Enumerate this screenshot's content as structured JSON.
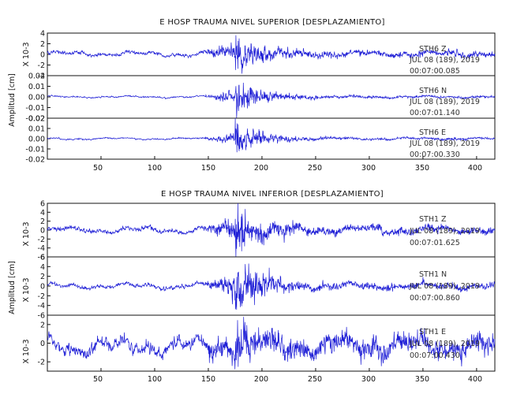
{
  "colors": {
    "trace": "#1f1fd6",
    "axis": "#111111",
    "background": "#ffffff"
  },
  "chart_data": [
    {
      "type": "line",
      "title": "E HOSP TRAUMA NIVEL SUPERIOR [DESPLAZAMIENTO]",
      "ylabel": "Amplitud [cm]",
      "xlim": [
        0,
        417
      ],
      "xticks": [
        50,
        100,
        150,
        200,
        250,
        300,
        350,
        400
      ],
      "panels": [
        {
          "id": "sup-z",
          "scale_label": "X 10-3",
          "ylim": [
            -4,
            4
          ],
          "yticks": [
            "4",
            "2",
            "0",
            "-2",
            "-4"
          ],
          "yvals": [
            4,
            2,
            0,
            -2,
            -4
          ],
          "station": "STH6   Z",
          "date": "JUL 08 (189), 2019",
          "time": "00:07:00.085",
          "waveform": {
            "onset_x": 175,
            "peak_abs": 4.2,
            "background_abs": 0.5,
            "bias": 0.1
          }
        },
        {
          "id": "sup-n",
          "ylim": [
            -0.02,
            0.02
          ],
          "yticks": [
            "0.02",
            "0.01",
            "0.00",
            "-0.01",
            "-0.02"
          ],
          "yvals": [
            0.02,
            0.01,
            0,
            -0.01,
            -0.02
          ],
          "station": "STH6   N",
          "date": "JUL 08 (189), 2019",
          "time": "00:07:01.140",
          "waveform": {
            "onset_x": 175,
            "peak_abs": 0.018,
            "background_abs": 0.001,
            "bias": 0
          }
        },
        {
          "id": "sup-e",
          "ylim": [
            -0.02,
            0.02
          ],
          "yticks": [
            "0.02",
            "0.01",
            "0.00",
            "-0.01",
            "-0.02"
          ],
          "yvals": [
            0.02,
            0.01,
            0,
            -0.01,
            -0.02
          ],
          "station": "STH6   E",
          "date": "JUL 08 (189), 2019",
          "time": "00:07:00.330",
          "waveform": {
            "onset_x": 175,
            "peak_abs": 0.018,
            "background_abs": 0.001,
            "bias": 0
          }
        }
      ]
    },
    {
      "type": "line",
      "title": "E HOSP TRAUMA NIVEL INFERIOR [DESPLAZAMIENTO]",
      "ylabel": "Amplitud [cm]",
      "xlim": [
        0,
        417
      ],
      "xticks": [
        50,
        100,
        150,
        200,
        250,
        300,
        350,
        400
      ],
      "panels": [
        {
          "id": "inf-z",
          "scale_label": "X 10-3",
          "ylim": [
            -6,
            6
          ],
          "yticks": [
            "6",
            "4",
            "2",
            "0",
            "-2",
            "-4",
            "-6"
          ],
          "yvals": [
            6,
            4,
            2,
            0,
            -2,
            -4,
            -6
          ],
          "station": "STH1   Z",
          "date": "JUL 08 (189), 2019",
          "time": "00:07:01.625",
          "waveform": {
            "onset_x": 175,
            "peak_abs": 6,
            "background_abs": 0.8,
            "bias": 0
          }
        },
        {
          "id": "inf-n",
          "scale_label": "X 10-3",
          "ylim": [
            -6,
            6
          ],
          "yticks": [
            "6",
            "4",
            "2",
            "0",
            "-2",
            "-4",
            "-6"
          ],
          "yvals": [
            6,
            4,
            2,
            0,
            -2,
            -4,
            -6
          ],
          "station": "STH1   N",
          "date": "JUL 08 (189), 2019",
          "time": "00:07:00.860",
          "waveform": {
            "onset_x": 175,
            "peak_abs": 6,
            "background_abs": 0.6,
            "bias": 0
          }
        },
        {
          "id": "inf-e",
          "scale_label": "X 10-3",
          "ylim": [
            -3,
            3
          ],
          "yticks": [
            "2",
            "0",
            "-2"
          ],
          "yvals": [
            2,
            0,
            -2
          ],
          "station": "STH1   E",
          "date": "JUL 08 (189), 2019",
          "time": "00:07:00.430",
          "waveform": {
            "onset_x": 175,
            "peak_abs": 3,
            "background_abs": 1.0,
            "bias": -0.3
          }
        }
      ]
    }
  ]
}
